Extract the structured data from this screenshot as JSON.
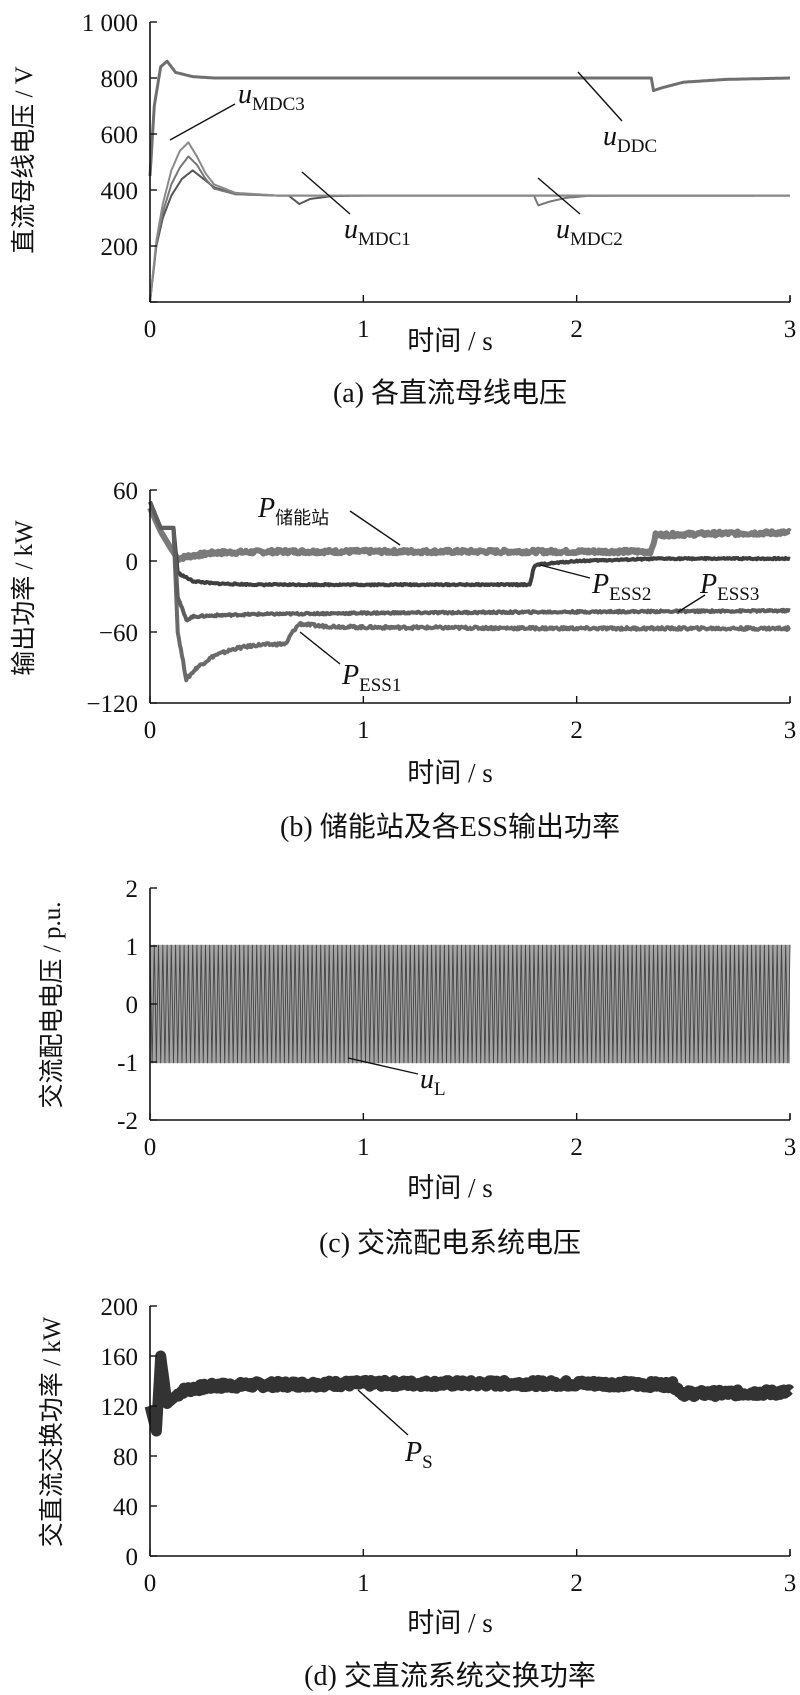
{
  "chart_data": [
    {
      "id": "a",
      "type": "line",
      "caption": "(a)  各直流母线电压",
      "xlabel": "时间 / s",
      "ylabel": "直流母线电压 / V",
      "xlim": [
        0,
        3
      ],
      "ylim": [
        0,
        1000
      ],
      "xticks": [
        {
          "v": 0,
          "label": "0"
        },
        {
          "v": 1,
          "label": "1"
        },
        {
          "v": 2,
          "label": "2"
        },
        {
          "v": 3,
          "label": "3"
        }
      ],
      "yticks": [
        {
          "v": 0,
          "label": ""
        },
        {
          "v": 200,
          "label": "200"
        },
        {
          "v": 400,
          "label": "400"
        },
        {
          "v": 600,
          "label": "600"
        },
        {
          "v": 800,
          "label": "800"
        },
        {
          "v": 1000,
          "label": "1 000"
        }
      ],
      "series": [
        {
          "name": "uDDC",
          "label_main": "u",
          "label_sub": "DDC",
          "color": "#6f6f6f",
          "width": 3,
          "noise": 0,
          "x": [
            0,
            0.02,
            0.05,
            0.08,
            0.12,
            0.2,
            0.3,
            0.5,
            1.0,
            2.0,
            2.35,
            2.36,
            2.4,
            2.5,
            2.7,
            3.0
          ],
          "y": [
            450,
            700,
            840,
            860,
            820,
            805,
            800,
            800,
            800,
            800,
            800,
            755,
            765,
            785,
            795,
            800
          ]
        },
        {
          "name": "uMDC1",
          "label_main": "u",
          "label_sub": "MDC1",
          "color": "#555555",
          "width": 2,
          "noise": 0,
          "x": [
            0,
            0.03,
            0.06,
            0.1,
            0.15,
            0.2,
            0.25,
            0.3,
            0.4,
            0.6,
            0.65,
            0.7,
            0.75,
            0.85,
            1.0,
            2.0,
            3.0
          ],
          "y": [
            0,
            200,
            300,
            380,
            440,
            470,
            440,
            410,
            385,
            380,
            380,
            350,
            368,
            378,
            380,
            380,
            380
          ]
        },
        {
          "name": "uMDC2",
          "label_main": "u",
          "label_sub": "MDC2",
          "color": "#777777",
          "width": 2,
          "noise": 0,
          "x": [
            0,
            0.03,
            0.06,
            0.1,
            0.14,
            0.18,
            0.22,
            0.26,
            0.3,
            0.4,
            0.6,
            1.0,
            1.8,
            1.82,
            1.87,
            1.95,
            2.05,
            3.0
          ],
          "y": [
            0,
            210,
            320,
            420,
            480,
            520,
            490,
            440,
            405,
            385,
            380,
            380,
            380,
            345,
            358,
            372,
            379,
            380
          ]
        },
        {
          "name": "uMDC3",
          "label_main": "u",
          "label_sub": "MDC3",
          "color": "#8a8a8a",
          "width": 2,
          "noise": 0,
          "x": [
            0,
            0.03,
            0.06,
            0.1,
            0.14,
            0.18,
            0.22,
            0.26,
            0.3,
            0.4,
            0.6,
            1.0,
            2.0,
            3.0
          ],
          "y": [
            0,
            220,
            350,
            470,
            540,
            570,
            520,
            460,
            420,
            390,
            380,
            380,
            380,
            380
          ]
        }
      ],
      "annotations": [
        {
          "series": "uMDC3",
          "main": "u",
          "sub": "MDC3"
        },
        {
          "series": "uDDC",
          "main": "u",
          "sub": "DDC"
        },
        {
          "series": "uMDC1",
          "main": "u",
          "sub": "MDC1"
        },
        {
          "series": "uMDC2",
          "main": "u",
          "sub": "MDC2"
        }
      ]
    },
    {
      "id": "b",
      "type": "line",
      "caption": "(b)  储能站及各ESS输出功率",
      "xlabel": "时间 / s",
      "ylabel": "输出功率 / kW",
      "xlim": [
        0,
        3
      ],
      "ylim": [
        -120,
        60
      ],
      "xticks": [
        {
          "v": 0,
          "label": "0"
        },
        {
          "v": 1,
          "label": "1"
        },
        {
          "v": 2,
          "label": "2"
        },
        {
          "v": 3,
          "label": "3"
        }
      ],
      "yticks": [
        {
          "v": -120,
          "label": "−120"
        },
        {
          "v": -60,
          "label": "−60"
        },
        {
          "v": 0,
          "label": "0"
        },
        {
          "v": 60,
          "label": "60"
        }
      ],
      "series": [
        {
          "name": "P储能站",
          "label_main": "P",
          "label_sub": "储能站",
          "color": "#7a7a7a",
          "width": 6,
          "noise": 1.6,
          "x": [
            0,
            0.05,
            0.1,
            0.13,
            0.18,
            0.3,
            0.6,
            1.0,
            2.0,
            2.35,
            2.37,
            2.6,
            3.0
          ],
          "y": [
            45,
            25,
            10,
            2,
            4,
            7,
            8,
            8,
            8,
            8,
            22,
            23,
            24
          ]
        },
        {
          "name": "PESS1",
          "label_main": "P",
          "label_sub": "ESS1",
          "color": "#6a6a6a",
          "width": 4,
          "noise": 1.2,
          "x": [
            0,
            0.05,
            0.11,
            0.13,
            0.17,
            0.22,
            0.3,
            0.4,
            0.5,
            0.64,
            0.66,
            0.7,
            0.8,
            1.0,
            2.0,
            3.0
          ],
          "y": [
            50,
            28,
            28,
            -60,
            -100,
            -90,
            -80,
            -74,
            -71,
            -70,
            -62,
            -53,
            -55,
            -56,
            -57,
            -57
          ]
        },
        {
          "name": "PESS2",
          "label_main": "P",
          "label_sub": "ESS2",
          "color": "#3f3f3f",
          "width": 4,
          "noise": 0.6,
          "x": [
            0,
            0.05,
            0.11,
            0.13,
            0.2,
            0.3,
            0.5,
            1.0,
            1.78,
            1.8,
            1.82,
            2.0,
            2.4,
            3.0
          ],
          "y": [
            50,
            28,
            28,
            -10,
            -17,
            -19,
            -20,
            -20,
            -20,
            -5,
            -3,
            0,
            2,
            2
          ]
        },
        {
          "name": "PESS3",
          "label_main": "P",
          "label_sub": "ESS3",
          "color": "#5e5e5e",
          "width": 4,
          "noise": 0.8,
          "x": [
            0,
            0.05,
            0.11,
            0.13,
            0.17,
            0.2,
            0.3,
            0.5,
            1.0,
            2.0,
            3.0
          ],
          "y": [
            50,
            28,
            28,
            -30,
            -50,
            -47,
            -46,
            -45,
            -44,
            -43,
            -42
          ]
        }
      ],
      "annotations": [
        {
          "series": "P储能站",
          "main": "P",
          "sub": "储能站"
        },
        {
          "series": "PESS2",
          "main": "P",
          "sub": "ESS2"
        },
        {
          "series": "PESS3",
          "main": "P",
          "sub": "ESS3"
        },
        {
          "series": "PESS1",
          "main": "P",
          "sub": "ESS1"
        }
      ]
    },
    {
      "id": "c",
      "type": "line",
      "caption": "(c)  交流配电系统电压",
      "xlabel": "时间 / s",
      "ylabel": "交流配电电压 / p.u.",
      "xlim": [
        0,
        3
      ],
      "ylim": [
        -2,
        2
      ],
      "xticks": [
        {
          "v": 0,
          "label": "0"
        },
        {
          "v": 1,
          "label": "1"
        },
        {
          "v": 2,
          "label": "2"
        },
        {
          "v": 3,
          "label": "3"
        }
      ],
      "yticks": [
        {
          "v": -2,
          "label": "-2"
        },
        {
          "v": -1,
          "label": "-1"
        },
        {
          "v": 0,
          "label": "0"
        },
        {
          "v": 1,
          "label": "1"
        },
        {
          "v": 2,
          "label": "2"
        }
      ],
      "series": [
        {
          "name": "uL",
          "label_main": "u",
          "label_sub": "L",
          "color": "#595959",
          "amplitude": 1.02,
          "frequency_hz": 50
        }
      ],
      "annotations": [
        {
          "series": "uL",
          "main": "u",
          "sub": "L"
        }
      ]
    },
    {
      "id": "d",
      "type": "line",
      "caption": "(d)  交直流系统交换功率",
      "xlabel": "时间 / s",
      "ylabel": "交直流交换功率 / kW",
      "xlim": [
        0,
        3
      ],
      "ylim": [
        0,
        200
      ],
      "xticks": [
        {
          "v": 0,
          "label": "0"
        },
        {
          "v": 1,
          "label": "1"
        },
        {
          "v": 2,
          "label": "2"
        },
        {
          "v": 3,
          "label": "3"
        }
      ],
      "yticks": [
        {
          "v": 0,
          "label": "0"
        },
        {
          "v": 40,
          "label": "40"
        },
        {
          "v": 80,
          "label": "80"
        },
        {
          "v": 120,
          "label": "120"
        },
        {
          "v": 160,
          "label": "160"
        },
        {
          "v": 200,
          "label": "200"
        }
      ],
      "series": [
        {
          "name": "PS",
          "label_main": "P",
          "label_sub": "S",
          "color": "#333333",
          "width": 11,
          "noise": 2.5,
          "x": [
            0,
            0.03,
            0.05,
            0.08,
            0.1,
            0.15,
            0.2,
            0.3,
            0.5,
            1.0,
            2.0,
            2.45,
            2.5,
            2.6,
            3.0
          ],
          "y": [
            120,
            100,
            160,
            122,
            125,
            132,
            134,
            136,
            137,
            138,
            138,
            137,
            130,
            130,
            131
          ]
        }
      ],
      "annotations": [
        {
          "series": "PS",
          "main": "P",
          "sub": "S"
        }
      ]
    }
  ]
}
